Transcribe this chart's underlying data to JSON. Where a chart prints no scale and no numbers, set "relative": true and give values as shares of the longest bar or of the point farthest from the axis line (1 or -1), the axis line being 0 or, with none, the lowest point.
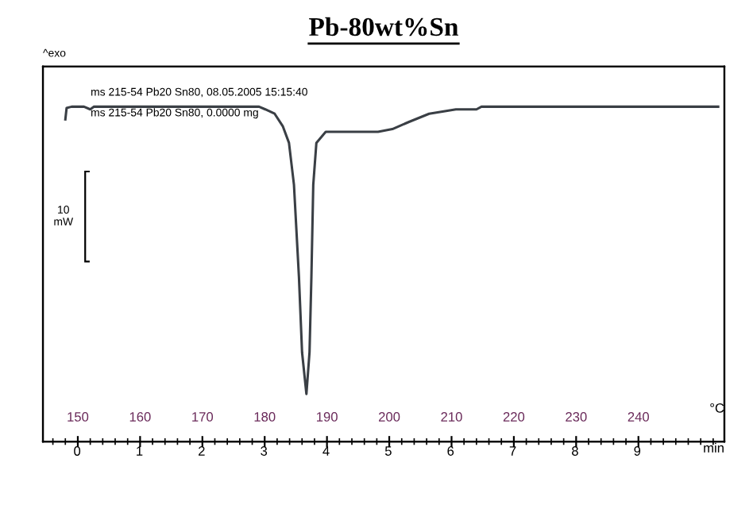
{
  "chart_data": {
    "type": "line",
    "title": "Pb-80wt%Sn",
    "relative": true,
    "xlabel": "°C",
    "x2label": "min",
    "annotations": [
      "^exo",
      "ms 215-54 Pb20 Sn80, 08.05.2005 15:15:40",
      "ms 215-54 Pb20 Sn80, 0.0000 mg",
      "10 mW"
    ],
    "xlim": [
      144.4,
      253.8
    ],
    "xticks": [
      150,
      160,
      170,
      180,
      190,
      200,
      210,
      220,
      230,
      240
    ],
    "x2lim": [
      -0.55,
      10.4
    ],
    "x2ticks": [
      0,
      1,
      2,
      3,
      4,
      5,
      6,
      7,
      8,
      9
    ],
    "grid": false,
    "legend": false,
    "marker": "none",
    "line_style": "solid",
    "series": [
      {
        "color": "#3a3f45",
        "x": [
          148.0,
          148.2,
          149.0,
          151.0,
          152.0,
          152.6,
          179.1,
          180.1,
          181.6,
          182.9,
          183.9,
          184.7,
          185.5,
          186.0,
          186.7,
          187.2,
          187.5,
          187.8,
          188.3,
          189.8,
          198.2,
          200.5,
          203.1,
          206.4,
          210.7,
          214.0,
          214.8,
          252.8
        ],
        "values": [
          0.962,
          0.996,
          1.0,
          1.0,
          0.992,
          1.0,
          1.0,
          0.992,
          0.979,
          0.942,
          0.892,
          0.767,
          0.492,
          0.267,
          0.142,
          0.267,
          0.492,
          0.767,
          0.892,
          0.925,
          0.925,
          0.933,
          0.954,
          0.979,
          0.992,
          0.992,
          1.0,
          1.0
        ]
      }
    ]
  }
}
